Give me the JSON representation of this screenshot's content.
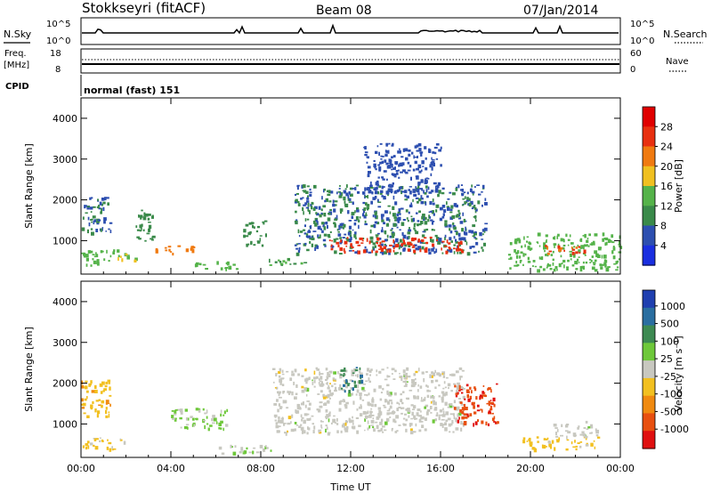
{
  "header": {
    "station": "Stokkseyri (fitACF)",
    "beam": "Beam 08",
    "date": "07/Jan/2014"
  },
  "top_panels": {
    "nsky_label": "N.Sky",
    "nsky_left_top": "10^5",
    "nsky_left_bottom": "10^0",
    "nsky_right_top": "10^5",
    "nsky_right_bottom": "10^0",
    "nsearch_label": "N.Search",
    "freq_label": "Freq.",
    "freq_unit": "[MHz]",
    "freq_top": "18",
    "freq_bottom": "8",
    "nave_label": "Nave",
    "nave_top": "60",
    "nave_bottom": "0",
    "cpid_label": "CPID",
    "cpid_value": "normal (fast) 151"
  },
  "colors": {
    "power_scale": [
      "#1a2fe0",
      "#2d4fb0",
      "#3a8a4a",
      "#55b34a",
      "#f0c020",
      "#f07a10",
      "#e83010",
      "#e00000"
    ],
    "velocity_scale": [
      "#1f3fb0",
      "#2a6ea0",
      "#3d8a52",
      "#6ec83a",
      "#c8c8c0",
      "#f2c020",
      "#f08a10",
      "#e85010",
      "#e01010"
    ]
  },
  "chart_data": [
    {
      "type": "heatmap",
      "panel": "power",
      "ylabel": "Slant Range [km]",
      "xlabel": "",
      "x_ticks": [
        "00:00",
        "04:00",
        "08:00",
        "12:00",
        "16:00",
        "20:00",
        "00:00"
      ],
      "y_ticks": [
        "1000",
        "2000",
        "3000",
        "4000"
      ],
      "xlim": [
        0,
        24
      ],
      "ylim": [
        180,
        4500
      ],
      "colorbar": {
        "label": "Power [dB]",
        "ticks": [
          "4",
          "8",
          "12",
          "16",
          "20",
          "24",
          "28"
        ],
        "range": [
          0,
          32
        ]
      },
      "echo_regions": [
        {
          "x": [
            0.0,
            1.3
          ],
          "y": [
            1200,
            2100
          ],
          "value": 8
        },
        {
          "x": [
            0.0,
            1.6
          ],
          "y": [
            400,
            800
          ],
          "value": 14
        },
        {
          "x": [
            1.2,
            2.4
          ],
          "y": [
            500,
            700
          ],
          "value": 16
        },
        {
          "x": [
            2.3,
            3.2
          ],
          "y": [
            1000,
            1800
          ],
          "value": 10
        },
        {
          "x": [
            3.3,
            5.0
          ],
          "y": [
            700,
            900
          ],
          "value": 22
        },
        {
          "x": [
            5.0,
            7.0
          ],
          "y": [
            300,
            500
          ],
          "value": 14
        },
        {
          "x": [
            7.2,
            8.2
          ],
          "y": [
            900,
            1500
          ],
          "value": 10
        },
        {
          "x": [
            8.3,
            10.0
          ],
          "y": [
            400,
            600
          ],
          "value": 12
        },
        {
          "x": [
            9.5,
            18.0
          ],
          "y": [
            700,
            2400
          ],
          "value": 8
        },
        {
          "x": [
            11.0,
            17.0
          ],
          "y": [
            750,
            1100
          ],
          "value": 26
        },
        {
          "x": [
            12.5,
            16.0
          ],
          "y": [
            2200,
            3400
          ],
          "value": 6
        },
        {
          "x": [
            19.0,
            24.0
          ],
          "y": [
            300,
            1200
          ],
          "value": 14
        },
        {
          "x": [
            20.5,
            22.5
          ],
          "y": [
            700,
            900
          ],
          "value": 24
        }
      ]
    },
    {
      "type": "heatmap",
      "panel": "velocity",
      "ylabel": "Slant Range [km]",
      "xlabel": "Time UT",
      "x_ticks": [
        "00:00",
        "04:00",
        "08:00",
        "12:00",
        "16:00",
        "20:00",
        "00:00"
      ],
      "y_ticks": [
        "1000",
        "2000",
        "3000",
        "4000"
      ],
      "xlim": [
        0,
        24
      ],
      "ylim": [
        180,
        4500
      ],
      "colorbar": {
        "label": "Velocity [m s⁻¹]",
        "ticks": [
          "1000",
          "500",
          "100",
          "25",
          "-25",
          "-100",
          "-500",
          "-1000"
        ],
        "range": [
          -1200,
          1200
        ]
      },
      "echo_regions": [
        {
          "x": [
            0.0,
            1.3
          ],
          "y": [
            1200,
            2100
          ],
          "value": -300
        },
        {
          "x": [
            0.0,
            2.0
          ],
          "y": [
            400,
            700
          ],
          "value": -200
        },
        {
          "x": [
            4.0,
            6.5
          ],
          "y": [
            900,
            1400
          ],
          "value": 150
        },
        {
          "x": [
            6.0,
            8.5
          ],
          "y": [
            300,
            500
          ],
          "value": 80
        },
        {
          "x": [
            8.5,
            17.0
          ],
          "y": [
            800,
            2400
          ],
          "value": 0
        },
        {
          "x": [
            11.5,
            12.5
          ],
          "y": [
            1800,
            2400
          ],
          "value": 600
        },
        {
          "x": [
            16.5,
            18.5
          ],
          "y": [
            1000,
            2000
          ],
          "value": -900
        },
        {
          "x": [
            19.5,
            23.0
          ],
          "y": [
            400,
            700
          ],
          "value": -250
        },
        {
          "x": [
            21.0,
            23.0
          ],
          "y": [
            700,
            1100
          ],
          "value": 0
        }
      ]
    }
  ]
}
